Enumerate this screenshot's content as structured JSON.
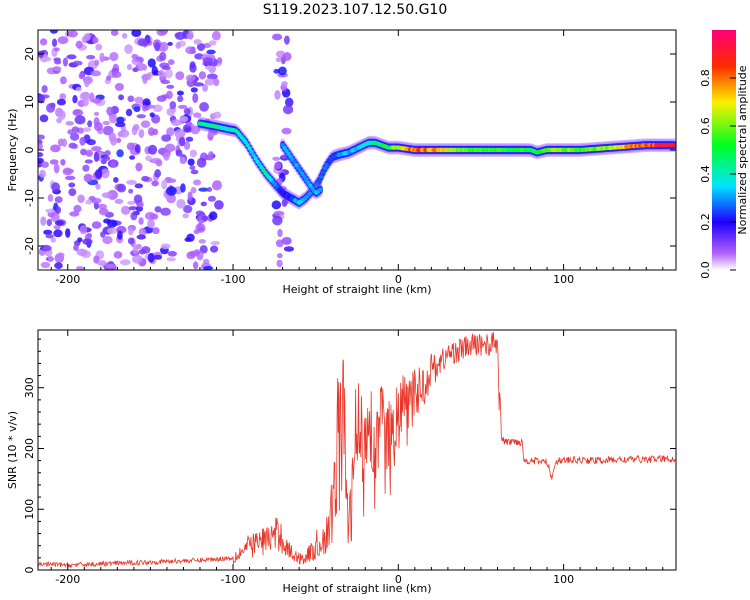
{
  "title": "S119.2023.107.12.50.G10",
  "chart_data": [
    {
      "type": "heatmap",
      "xlabel": "Height of straight line (km)",
      "ylabel": "Frequency (Hz)",
      "xlim": [
        -218,
        168
      ],
      "ylim": [
        -25,
        25
      ],
      "xticks": [
        -200,
        -100,
        0,
        100
      ],
      "xtick_labels": [
        "-200",
        "-100",
        "0",
        "100"
      ],
      "yticks": [
        -20,
        -10,
        0,
        10,
        20
      ],
      "ytick_labels": [
        "-20",
        "-10",
        "0",
        "10",
        "20"
      ],
      "colorbar": {
        "label": "Normalized spectral amplitude",
        "range": [
          0,
          1
        ],
        "ticks": [
          0,
          0.2,
          0.4,
          0.6,
          0.8
        ],
        "tick_labels": [
          "0.0",
          "0.2",
          "0.4",
          "0.6",
          "0.8"
        ]
      },
      "ridge": {
        "x": [
          -120,
          -112,
          -105,
          -98,
          -92,
          -86,
          -80,
          -75,
          -70,
          -65,
          -60,
          -56,
          -52,
          -48,
          -44,
          -40,
          -36,
          -30,
          -24,
          -18,
          -14,
          -10,
          -6,
          0,
          10,
          20,
          40,
          60,
          80,
          84,
          90,
          100,
          110,
          130,
          150,
          168
        ],
        "y": [
          5.5,
          5,
          4.5,
          4,
          1.5,
          -2,
          -5,
          -7,
          -9,
          -10,
          -11,
          -10,
          -8.5,
          -6.5,
          -3.5,
          -1.5,
          -1,
          -0.5,
          0.5,
          1.5,
          1.5,
          1,
          0.5,
          0.5,
          0,
          0,
          0,
          0,
          0,
          -0.5,
          0,
          0,
          0,
          0.5,
          1,
          1
        ],
        "amplitude": [
          0.45,
          0.45,
          0.4,
          0.45,
          0.4,
          0.35,
          0.45,
          0.3,
          0.2,
          0.25,
          0.4,
          0.3,
          0.35,
          0.25,
          0.3,
          0.25,
          0.3,
          0.35,
          0.35,
          0.4,
          0.45,
          0.5,
          0.55,
          0.7,
          0.9,
          0.8,
          0.6,
          0.55,
          0.55,
          0.5,
          0.6,
          0.65,
          0.55,
          0.7,
          0.9,
          0.95
        ]
      },
      "branch": {
        "x": [
          -70,
          -64,
          -58,
          -54,
          -50,
          -46
        ],
        "y": [
          1,
          -2,
          -5,
          -7,
          -9,
          -8
        ]
      },
      "noise_regions": [
        [
          -218,
          -108
        ],
        [
          -74,
          -66
        ]
      ]
    },
    {
      "type": "line",
      "xlabel": "Height of straight line (km)",
      "ylabel": "SNR (10 * v/v)",
      "xlim": [
        -218,
        168
      ],
      "ylim": [
        0,
        395
      ],
      "xticks": [
        -200,
        -100,
        0,
        100
      ],
      "xtick_labels": [
        "-200",
        "-100",
        "0",
        "100"
      ],
      "yticks": [
        0,
        100,
        200,
        300
      ],
      "ytick_labels": [
        "0",
        "100",
        "200",
        "300"
      ],
      "color": "#e8372a",
      "series": [
        {
          "x": [
            -218,
            -200,
            -180,
            -160,
            -140,
            -120,
            -110,
            -100,
            -95,
            -90,
            -85,
            -80,
            -76,
            -72,
            -68,
            -64,
            -60,
            -56,
            -52,
            -50,
            -48,
            -45,
            -42,
            -40,
            -38,
            -36,
            -34,
            -32,
            -30,
            -28,
            -26,
            -24,
            -22,
            -20,
            -18,
            -16,
            -14,
            -12,
            -10,
            -8,
            -6,
            -4,
            -2,
            0,
            2,
            4,
            6,
            8,
            10,
            12,
            14,
            16,
            18,
            20,
            25,
            30,
            35,
            40,
            45,
            50,
            55,
            60,
            62,
            63,
            65,
            70,
            75,
            76,
            80,
            90,
            93,
            95,
            100,
            110,
            120,
            130,
            140,
            150,
            160,
            168
          ],
          "y": [
            10,
            8,
            10,
            12,
            14,
            16,
            18,
            20,
            30,
            40,
            45,
            50,
            55,
            60,
            40,
            25,
            20,
            22,
            30,
            40,
            45,
            50,
            60,
            100,
            180,
            220,
            250,
            180,
            60,
            120,
            200,
            230,
            180,
            220,
            260,
            230,
            170,
            240,
            260,
            200,
            220,
            180,
            250,
            240,
            270,
            280,
            250,
            270,
            300,
            290,
            310,
            300,
            320,
            330,
            340,
            355,
            360,
            365,
            370,
            372,
            370,
            375,
            215,
            215,
            210,
            212,
            210,
            180,
            180,
            178,
            150,
            180,
            180,
            181,
            180,
            181,
            182,
            182,
            183,
            182
          ]
        }
      ]
    }
  ]
}
